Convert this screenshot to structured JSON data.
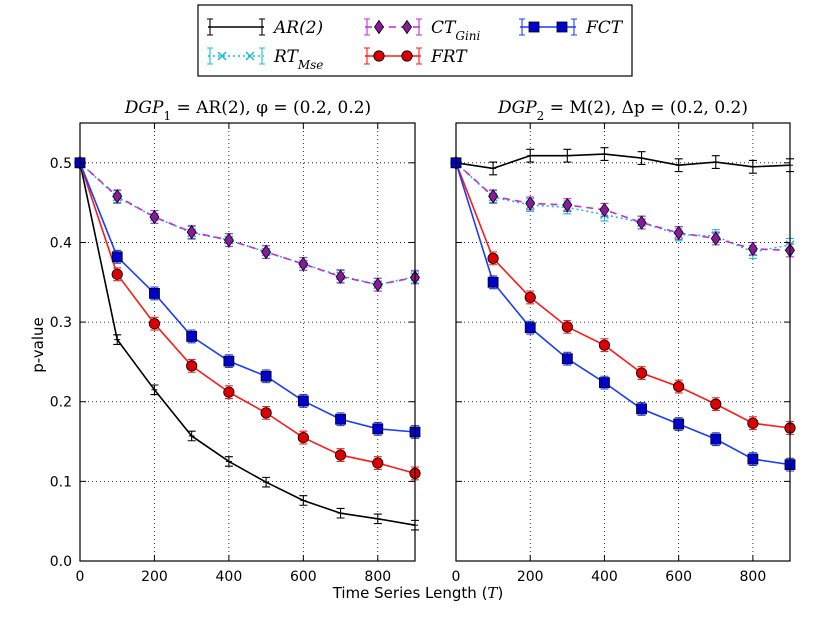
{
  "chart_data": {
    "type": "line",
    "figure": {
      "ylabel": "p-value",
      "xlabel_main": "Time Series Length (",
      "xlabel_var": "T",
      "xlabel_end": ")"
    },
    "legend": {
      "placement": "top-center",
      "entries": [
        {
          "key": "AR",
          "main": "AR(2)",
          "sub": ""
        },
        {
          "key": "RT",
          "main": "RT",
          "sub": "Mse"
        },
        {
          "key": "CT",
          "main": "CT",
          "sub": "Gini"
        },
        {
          "key": "FRT",
          "main": "FRT",
          "sub": ""
        },
        {
          "key": "FCT",
          "main": "FCT",
          "sub": ""
        }
      ]
    },
    "styles": {
      "AR": {
        "color": "#000000",
        "dash": "",
        "marker": "none"
      },
      "RT": {
        "color": "#17becf",
        "dash": "2,3",
        "marker": "x"
      },
      "CT": {
        "color": "#c12fd6",
        "dash": "7,5",
        "marker": "diamond",
        "fill": "#8b1a9b"
      },
      "FRT": {
        "color": "#ff1a1a",
        "dash": "",
        "marker": "circle",
        "fill": "#dd0000"
      },
      "FCT": {
        "color": "#1a3cff",
        "dash": "",
        "marker": "square",
        "fill": "#0000cc"
      }
    },
    "x": [
      0,
      100,
      200,
      300,
      400,
      500,
      600,
      700,
      800,
      900
    ],
    "xlim": [
      0,
      900
    ],
    "ylim": [
      0.0,
      0.55
    ],
    "xticks": [
      0,
      200,
      400,
      600,
      800
    ],
    "yticks": [
      0.0,
      0.1,
      0.2,
      0.3,
      0.4,
      0.5
    ],
    "ytick_labels": [
      "0.0",
      "0.1",
      "0.2",
      "0.3",
      "0.4",
      "0.5"
    ],
    "grid": true,
    "panels": [
      {
        "title_lhs": "DGP",
        "title_sub": "1",
        "title_rhs": " = AR(2), φ = (0.2, 0.2)",
        "series": [
          {
            "key": "AR",
            "values": [
              0.5,
              0.278,
              0.215,
              0.157,
              0.125,
              0.099,
              0.076,
              0.06,
              0.053,
              0.045
            ],
            "err": 0.006
          },
          {
            "key": "RT",
            "values": [
              0.5,
              0.457,
              0.432,
              0.412,
              0.403,
              0.388,
              0.373,
              0.358,
              0.347,
              0.357
            ],
            "err": 0.008
          },
          {
            "key": "CT",
            "values": [
              0.5,
              0.458,
              0.432,
              0.413,
              0.403,
              0.388,
              0.373,
              0.357,
              0.347,
              0.356
            ],
            "err": 0.008
          },
          {
            "key": "FRT",
            "values": [
              0.5,
              0.36,
              0.298,
              0.245,
              0.212,
              0.186,
              0.155,
              0.133,
              0.123,
              0.11
            ],
            "err": 0.008
          },
          {
            "key": "FCT",
            "values": [
              0.5,
              0.382,
              0.336,
              0.282,
              0.251,
              0.232,
              0.201,
              0.178,
              0.166,
              0.162
            ],
            "err": 0.008
          }
        ]
      },
      {
        "title_lhs": "DGP",
        "title_sub": "2",
        "title_rhs": " = M(2), Δp = (0.2, 0.2)",
        "series": [
          {
            "key": "AR",
            "values": [
              0.5,
              0.493,
              0.509,
              0.509,
              0.511,
              0.506,
              0.497,
              0.501,
              0.495,
              0.497
            ],
            "err": 0.008
          },
          {
            "key": "RT",
            "values": [
              0.5,
              0.457,
              0.447,
              0.444,
              0.435,
              0.425,
              0.41,
              0.408,
              0.388,
              0.397
            ],
            "err": 0.008
          },
          {
            "key": "CT",
            "values": [
              0.5,
              0.458,
              0.449,
              0.447,
              0.441,
              0.425,
              0.412,
              0.405,
              0.392,
              0.39
            ],
            "err": 0.008
          },
          {
            "key": "FRT",
            "values": [
              0.5,
              0.38,
              0.331,
              0.294,
              0.271,
              0.236,
              0.219,
              0.197,
              0.173,
              0.167
            ],
            "err": 0.008
          },
          {
            "key": "FCT",
            "values": [
              0.5,
              0.35,
              0.293,
              0.254,
              0.224,
              0.191,
              0.172,
              0.153,
              0.128,
              0.121
            ],
            "err": 0.008
          }
        ]
      }
    ]
  }
}
